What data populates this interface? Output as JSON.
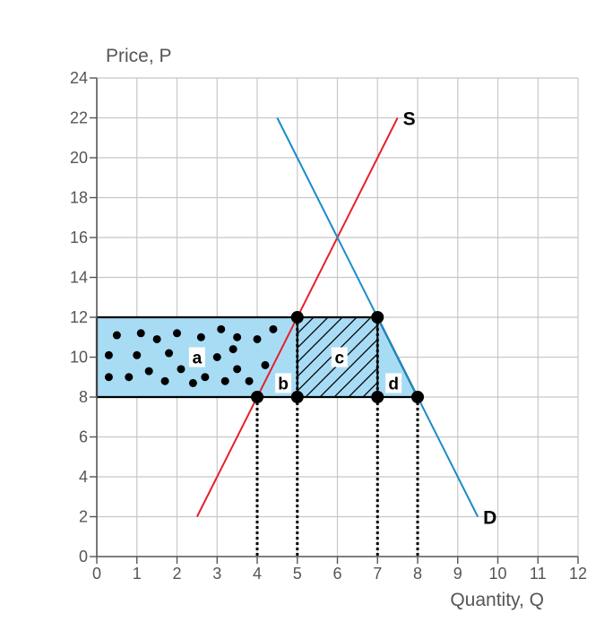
{
  "chart_data": {
    "type": "line",
    "xlabel": "Quantity, Q",
    "ylabel": "Price, P",
    "xlim": [
      0,
      12
    ],
    "ylim": [
      0,
      24
    ],
    "x_ticks": [
      0,
      1,
      2,
      3,
      4,
      5,
      6,
      7,
      8,
      9,
      10,
      11,
      12
    ],
    "y_ticks": [
      0,
      2,
      4,
      6,
      8,
      10,
      12,
      14,
      16,
      18,
      20,
      22,
      24
    ],
    "grid": true,
    "series": [
      {
        "name": "S",
        "color": "#e8202a",
        "points": [
          [
            2.5,
            2
          ],
          [
            7.5,
            22
          ]
        ]
      },
      {
        "name": "D",
        "color": "#1b8bc9",
        "points": [
          [
            4.5,
            22
          ],
          [
            9.5,
            2
          ]
        ]
      }
    ],
    "regions": [
      {
        "label": "a",
        "fill": "#a8dcf5",
        "pattern": "dots",
        "polygon": [
          [
            0,
            8
          ],
          [
            0,
            12
          ],
          [
            5,
            12
          ],
          [
            4,
            8
          ]
        ]
      },
      {
        "label": "b",
        "fill": "#a8dcf5",
        "pattern": "none",
        "polygon": [
          [
            4,
            8
          ],
          [
            5,
            12
          ],
          [
            5,
            8
          ]
        ]
      },
      {
        "label": "c",
        "fill": "#a8dcf5",
        "pattern": "hatch",
        "polygon": [
          [
            5,
            8
          ],
          [
            5,
            12
          ],
          [
            7,
            12
          ],
          [
            7,
            8
          ]
        ]
      },
      {
        "label": "d",
        "fill": "#a8dcf5",
        "pattern": "none",
        "polygon": [
          [
            7,
            8
          ],
          [
            7,
            12
          ],
          [
            8,
            8
          ]
        ]
      }
    ],
    "points": [
      [
        5,
        12
      ],
      [
        7,
        12
      ],
      [
        4,
        8
      ],
      [
        5,
        8
      ],
      [
        7,
        8
      ],
      [
        8,
        8
      ]
    ],
    "drop_lines_x": [
      4,
      5,
      7,
      8
    ],
    "price_lines": [
      8,
      12
    ]
  }
}
